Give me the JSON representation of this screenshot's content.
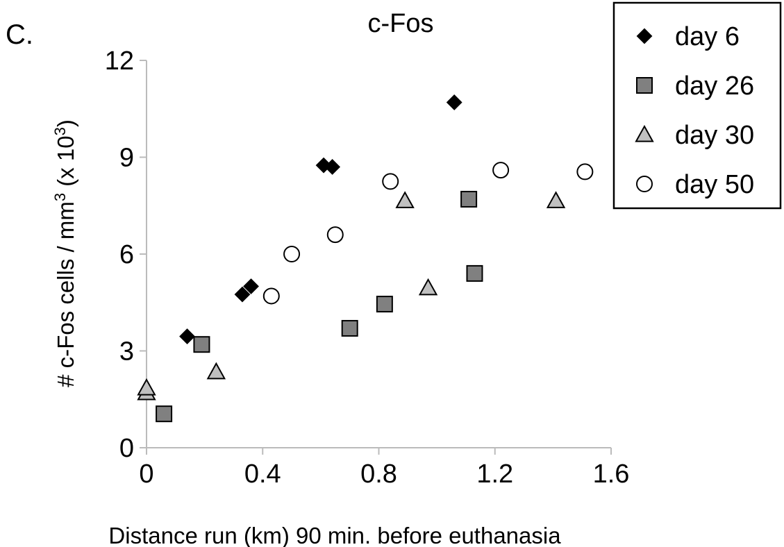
{
  "panel_label": "C.",
  "chart_data": {
    "type": "scatter",
    "title": "c-Fos",
    "xlabel": "Distance run (km) 90 min. before euthanasia",
    "ylabel": {
      "prefix": "# c-Fos cells / mm",
      "prefix_sup": "3",
      "middle": " (x 10",
      "middle_sup": "3",
      "suffix": ")"
    },
    "xlim": [
      0,
      1.6
    ],
    "ylim": [
      0,
      12
    ],
    "xticks": [
      "0",
      "0.4",
      "0.8",
      "1.2",
      "1.6"
    ],
    "yticks": [
      "0",
      "3",
      "6",
      "9",
      "12"
    ],
    "xtick_values": [
      0,
      0.4,
      0.8,
      1.2,
      1.6
    ],
    "ytick_values": [
      0,
      3,
      6,
      9,
      12
    ],
    "grid": false,
    "legend_position": "top-right",
    "series": [
      {
        "name": "day 6",
        "marker": "diamond",
        "color": "#000000",
        "points": [
          [
            0.14,
            3.45
          ],
          [
            0.33,
            4.75
          ],
          [
            0.36,
            5.0
          ],
          [
            0.61,
            8.75
          ],
          [
            0.64,
            8.7
          ],
          [
            1.06,
            10.7
          ]
        ]
      },
      {
        "name": "day 26",
        "marker": "square",
        "color": "#808080",
        "points": [
          [
            0.06,
            1.05
          ],
          [
            0.19,
            3.2
          ],
          [
            0.7,
            3.7
          ],
          [
            0.82,
            4.45
          ],
          [
            1.11,
            7.7
          ],
          [
            1.13,
            5.4
          ]
        ]
      },
      {
        "name": "day 30",
        "marker": "triangle",
        "color": "#c0c0c0",
        "points": [
          [
            0.0,
            1.7
          ],
          [
            0.0,
            1.85
          ],
          [
            0.24,
            2.35
          ],
          [
            0.89,
            7.65
          ],
          [
            0.97,
            4.95
          ],
          [
            1.41,
            7.65
          ]
        ]
      },
      {
        "name": "day 50",
        "marker": "circle",
        "color": "#ffffff",
        "points": [
          [
            0.43,
            4.7
          ],
          [
            0.5,
            6.0
          ],
          [
            0.65,
            6.6
          ],
          [
            0.84,
            8.25
          ],
          [
            1.22,
            8.6
          ],
          [
            1.51,
            8.55
          ]
        ]
      }
    ]
  }
}
